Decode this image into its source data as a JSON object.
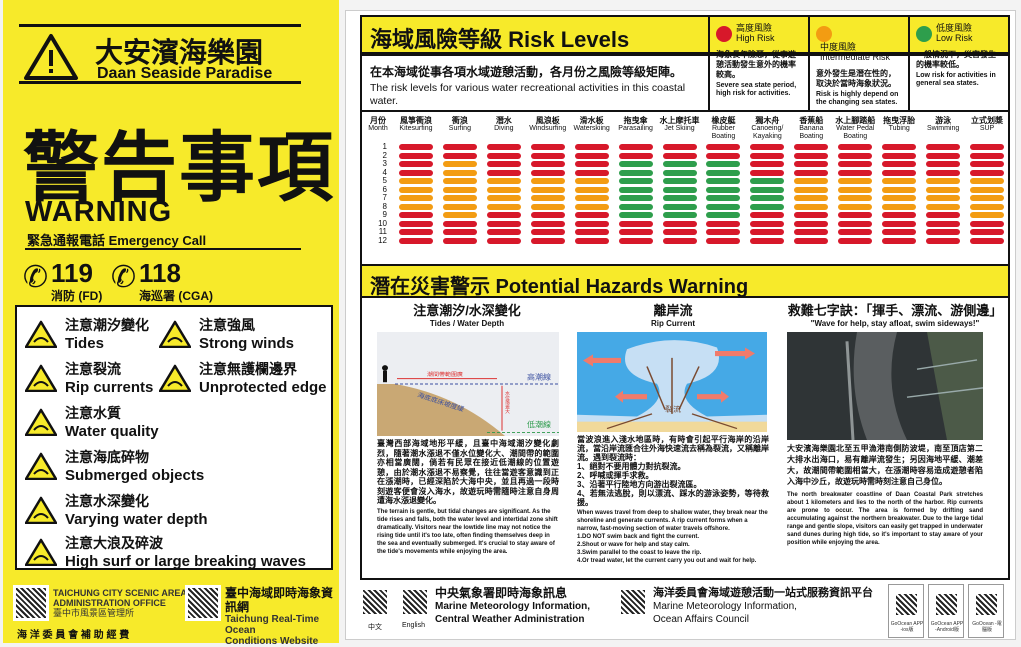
{
  "left": {
    "title_cn": "大安濱海樂園",
    "title_en": "Daan Seaside Paradise",
    "warning_cn": "警告事項",
    "warning_en": "WARNING",
    "emergency": "緊急通報電話 Emergency Call",
    "phones": [
      {
        "number": "119",
        "label": "消防 (FD)"
      },
      {
        "number": "118",
        "label": "海巡署 (CGA)"
      }
    ],
    "hazards": [
      {
        "cn": "注意潮汐變化",
        "en": "Tides"
      },
      {
        "cn": "注意強風",
        "en": "Strong winds"
      },
      {
        "cn": "注意裂流",
        "en": "Rip currents"
      },
      {
        "cn": "注意無護欄邊界",
        "en": "Unprotected edge"
      },
      {
        "cn": "注意水質",
        "en": "Water quality"
      },
      {
        "cn": "注意海底碎物",
        "en": "Submerged objects"
      },
      {
        "cn": "注意水深變化",
        "en": "Varying water depth"
      },
      {
        "cn": "注意大浪及碎波",
        "en": "High surf or large breaking waves"
      }
    ],
    "footer": {
      "office_en1": "TAICHUNG CITY SCENIC AREA",
      "office_en2": "ADMINISTRATION OFFICE",
      "office_cn": "臺中市風景區管理所",
      "site_cn": "臺中海域即時海象資訊網",
      "site_en1": "Taichung Real-Time Ocean",
      "site_en2": "Conditions Website",
      "funding": "海 洋 委 員 會 補 助 經 費"
    }
  },
  "risk": {
    "title": "海域風險等級  Risk Levels",
    "desc_cn": "在本海域從事各項水域遊憩活動，各月份之風險等級矩陣。",
    "desc_en": "The risk levels for various water recreational activities in this coastal water.",
    "legend": [
      {
        "cn": "高度風險",
        "en": "High Risk",
        "color": "#d7182a",
        "desc_cn": "海象長年險惡，從事遊憩活動發生意外的機率較高。",
        "desc_en": "Severe sea state period, high risk for activities."
      },
      {
        "cn": "中度風險",
        "en": "Intermediate Risk",
        "color": "#f39c12",
        "desc_cn": "意外發生是潛在性的，取決於當時海象狀況。",
        "desc_en": "Risk is highly depend on the changing sea states."
      },
      {
        "cn": "低度風險",
        "en": "Low Risk",
        "color": "#2e9e4c",
        "desc_cn": "一般情況下，災害發生的機率較低。",
        "desc_en": "Low risk for activities in general sea states."
      }
    ],
    "month_cn": "月份",
    "month_en": "Month",
    "months": [
      "1",
      "2",
      "3",
      "4",
      "5",
      "6",
      "7",
      "8",
      "9",
      "10",
      "11",
      "12"
    ],
    "colors": {
      "H": "#d7182a",
      "M": "#f39c12",
      "L": "#2e9e4c"
    },
    "activities": [
      {
        "cn": "風箏衝浪",
        "en": "Kitesurfing",
        "levels": "HHHHMMMMHHHH"
      },
      {
        "cn": "衝浪",
        "en": "Surfing",
        "levels": "HHMMMMMMMHHH"
      },
      {
        "cn": "潛水",
        "en": "Diving",
        "levels": "HHHHMMMMHHHH"
      },
      {
        "cn": "風浪板",
        "en": "Windsurfing",
        "levels": "HHHHMMMMHHHH"
      },
      {
        "cn": "滑水板",
        "en": "Waterskiing",
        "levels": "HHHHMMMMHHHH"
      },
      {
        "cn": "拖曳傘",
        "en": "Parasailing",
        "levels": "HHLLLLLLLHHH"
      },
      {
        "cn": "水上摩托車",
        "en": "Jet Skiing",
        "levels": "HHLLLLLLLHHH"
      },
      {
        "cn": "橡皮艇",
        "en": "Rubber Boating",
        "levels": "HHLLLLLLLHHH"
      },
      {
        "cn": "獨木舟",
        "en": "Canoeing/ Kayaking",
        "levels": "HHHHLLLLHHHH"
      },
      {
        "cn": "香蕉船",
        "en": "Banana Boating",
        "levels": "HHHHMMMMHHHH"
      },
      {
        "cn": "水上腳踏船",
        "en": "Water Pedal Boating",
        "levels": "HHHHMMMMHHHH"
      },
      {
        "cn": "拖曳浮胎",
        "en": "Tubing",
        "levels": "HHHHMMMMHHHH"
      },
      {
        "cn": "游泳",
        "en": "Swimming",
        "levels": "HHHHMMMMHHHH"
      },
      {
        "cn": "立式划槳",
        "en": "SUP",
        "levels": "HHHHMMMMMHHH"
      }
    ]
  },
  "hazards": {
    "title": "潛在災害警示  Potential Hazards Warning",
    "columns": [
      {
        "cn": "注意潮汐/水深變化",
        "en": "Tides / Water Depth",
        "labels": {
          "high": "高潮線",
          "low": "低潮線",
          "zone": "潮間帶範圍廣",
          "slope": "海底底床坡度緩",
          "drop": "水位落差大"
        },
        "text_cn": "臺灣西部海域地形平緩，且臺中海域潮汐變化劇烈，隨著潮水漲退不僅水位變化大、潮間帶的範圍亦相當廣闊，倘若有民眾在接近低潮線的位置遊憩，由於潮水漲退不易察覺，往往當遊客意識到正在漲潮時，已經深陷於大海中央，並且再過一段時刻遊客便會沒入海水，故遊玩時需隨時注意自身周遭海水漲退變化。",
        "text_en": "The terrain is gentle, but tidal changes are significant. As the tide rises and falls, both the water level and intertidal zone shift dramatically. Visitors near the lowtide line may not notice the rising tide until it's too late, often finding themselves deep in the sea and eventually submerged. It's crucial to stay aware of the tide's movements while enjoying the area."
      },
      {
        "cn": "離岸流",
        "en": "Rip Current",
        "labels": {
          "escape": "脫生",
          "rip": "裂流"
        },
        "text_cn": "當波浪進入淺水地區時，有時會引起平行海岸的沿岸流，當沿岸流匯合往外海快速流去稱為裂流，又稱離岸流。遇到裂流時：\n1、絕對不要用體力對抗裂流。\n2、呼喊或揮手求救。\n3、沿著平行陸地方向游出裂流區。\n4、若無法逃脫，則以漂流、踩水的游泳姿勢，等待救援。",
        "text_en": "When waves travel from deep to shallow water, they break near the shoreline and generate currents. A rip current forms when a narrow, fast-moving section of water travels offshore.\n1.DO NOT swim back and fight the current.\n2.Shout or wave for help and stay calm.\n3.Swim parallel to the coast to leave the rip.\n4.Or tread water, let the current carry you out and wait for help."
      },
      {
        "cn": "救難七字訣：「揮手、漂流、游側邊」",
        "en": "\"Wave for help, stay afloat,  swim sideways!\"",
        "text_cn": "大安濱海樂園北至五甲漁港南側防波堤，南至頂店第二大排水出海口，易有離岸流發生；另因海地平緩、潮差大，故潮間帶範圍相當大，在漲潮時容易造成遊憩者陷入海中沙丘，故遊玩時需時刻注意自己身位。",
        "text_en": "The north breakwater coastline of Daan Coastal Park stretches about 1 kilometers and lies to the north of the harbor. Rip currents are prone to occur. The area is formed by drifting sand accumulating against the northern breakwater. Due to the large tidal range and gentle slope, visitors can easily get trapped in underwater sand dunes during high tide, so it's important to stay aware of your position while enjoying the area."
      }
    ]
  },
  "footer": {
    "qr_cn": "中文",
    "qr_en": "English",
    "cwa_cn": "中央氣象署即時海象訊息",
    "cwa_en1": "Marine Meteorology Information,",
    "cwa_en2": "Central Weather Administration",
    "oac_cn": "海洋委員會海域遊憩活動一站式服務資訊平台",
    "oac_en1": "Marine Meteorology Information,",
    "oac_en2": "Ocean Affairs Council",
    "apps": [
      "GoOcean APP -ios版",
      "GoOcean APP -Android版",
      "GoOcean -電腦版"
    ]
  }
}
